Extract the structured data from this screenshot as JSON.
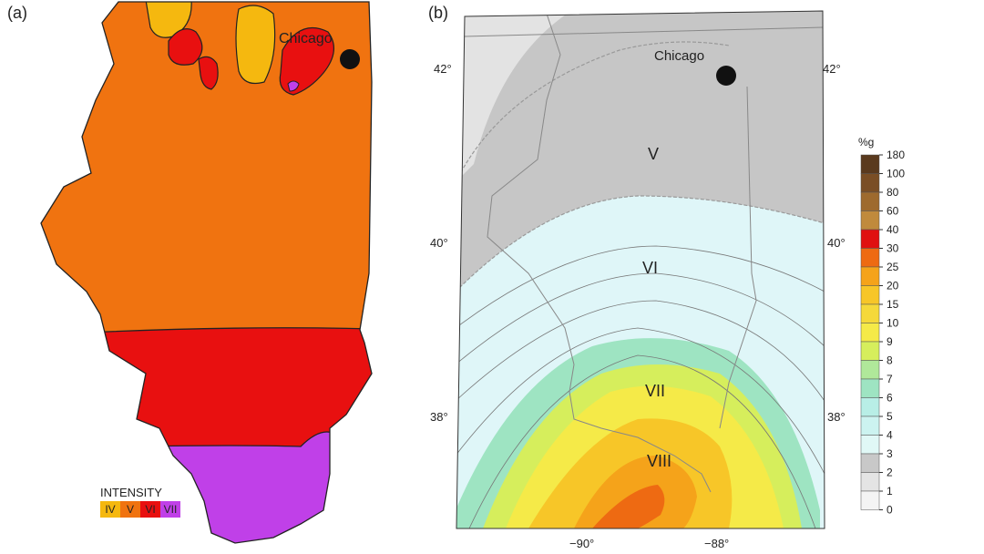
{
  "panel_a": {
    "label": "(a)",
    "city": "Chicago",
    "legend_title": "INTENSITY",
    "legend": [
      {
        "label": "IV",
        "color": "#F5B80F"
      },
      {
        "label": "V",
        "color": "#F07310"
      },
      {
        "label": "VI",
        "color": "#E81010"
      },
      {
        "label": "VII",
        "color": "#C040E8"
      }
    ]
  },
  "panel_b": {
    "label": "(b)",
    "city": "Chicago",
    "lat_ticks": [
      "42°",
      "40°",
      "38°"
    ],
    "lon_ticks": [
      "−90°",
      "−88°"
    ],
    "zones": [
      "V",
      "VI",
      "VII",
      "VIII"
    ],
    "scale": {
      "unit": "%g",
      "labels": [
        "180",
        "100",
        "80",
        "60",
        "40",
        "30",
        "25",
        "20",
        "15",
        "10",
        "9",
        "8",
        "7",
        "6",
        "5",
        "4",
        "3",
        "2",
        "1",
        "0"
      ],
      "colors": [
        "#5A3A1E",
        "#7A4E25",
        "#9E6A2E",
        "#C08A3C",
        "#E01010",
        "#EE6A12",
        "#F5A31A",
        "#F7C628",
        "#F5D93A",
        "#F5EA48",
        "#D6EE5C",
        "#B0E89A",
        "#9EE4C2",
        "#B8EEE6",
        "#CCF3F0",
        "#E0F8F6",
        "#C8C8C8",
        "#E4E4E4",
        "#F4F4F4"
      ]
    },
    "colors": {
      "gray_zone": "#C6C6C6",
      "outside": "#E3E3E3",
      "lake": "#E6EEFA",
      "cyan": "#DFF6F8"
    }
  }
}
